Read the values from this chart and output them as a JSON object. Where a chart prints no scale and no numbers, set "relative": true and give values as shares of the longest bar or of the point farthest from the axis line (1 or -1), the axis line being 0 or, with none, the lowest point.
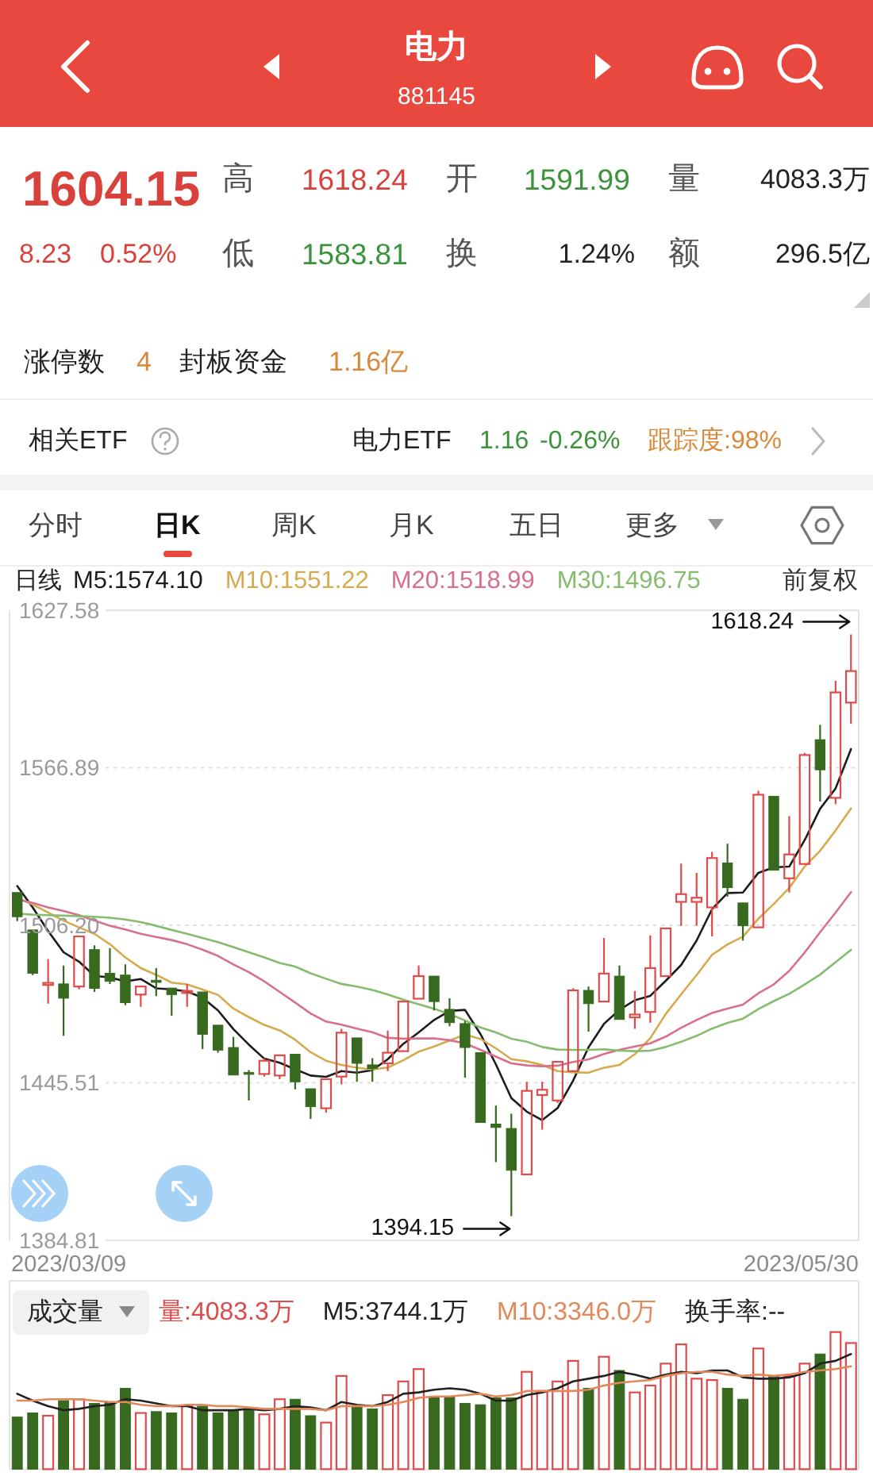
{
  "chart_data": [
    {
      "type": "other",
      "title": "电力",
      "subtitle": "881145",
      "annotations": [
        "1604.15",
        "高",
        "1618.24",
        "开",
        "1591.99",
        "量",
        "4083.3万",
        "8.23",
        "0.52%",
        "低",
        "1583.81",
        "换",
        "1.24%",
        "额",
        "296.5亿",
        "涨停数",
        "4",
        "封板资金",
        "1.16亿",
        "相关ETF",
        "电力ETF",
        "1.16",
        "-0.26%",
        "跟踪度:98%",
        "分时",
        "日K",
        "周K",
        "月K",
        "五日",
        "更多"
      ]
    },
    {
      "type": "candlestick",
      "title": "日线",
      "categories": [
        null,
        null,
        null,
        null,
        null,
        null,
        null,
        null,
        null,
        null,
        null,
        null,
        null,
        null,
        null,
        null,
        null,
        null,
        null,
        null,
        null,
        null,
        null,
        null,
        null,
        null,
        null,
        null,
        null,
        null,
        null,
        null,
        null,
        null,
        null,
        null,
        null,
        null,
        null,
        null,
        null,
        null,
        null,
        null,
        null,
        null,
        null,
        null,
        null,
        null,
        null,
        null,
        null,
        null,
        null
      ],
      "ohlc": [
        [
          1518.8,
          1519.2,
          1507.8,
          1509.5
        ],
        [
          1504.4,
          1505.0,
          1487.0,
          1487.7
        ],
        [
          1483.2,
          1493.2,
          1476.0,
          1484.0
        ],
        [
          1483.6,
          1490.7,
          1463.6,
          1478.1
        ],
        [
          1482.6,
          1502.3,
          1481.5,
          1501.9
        ],
        [
          1496.8,
          1498.5,
          1480.5,
          1481.9
        ],
        [
          1487.7,
          1497.4,
          1483.6,
          1484.6
        ],
        [
          1487.0,
          1491.1,
          1475.4,
          1476.4
        ],
        [
          1479.5,
          1483.0,
          1474.8,
          1482.6
        ],
        [
          1485.0,
          1489.7,
          1478.9,
          1484.2
        ],
        [
          1482.0,
          1482.6,
          1471.3,
          1479.5
        ],
        [
          1480.1,
          1483.6,
          1474.8,
          1480.9
        ],
        [
          1480.5,
          1480.9,
          1458.5,
          1464.2
        ],
        [
          1467.7,
          1468.3,
          1457.1,
          1458.1
        ],
        [
          1459.1,
          1463.2,
          1447.9,
          1448.5
        ],
        [
          1449.5,
          1450.4,
          1438.7,
          1449.1
        ],
        [
          1448.9,
          1455.0,
          1447.9,
          1454.0
        ],
        [
          1448.3,
          1456.5,
          1446.9,
          1456.1
        ],
        [
          1456.5,
          1457.1,
          1443.0,
          1445.9
        ],
        [
          1443.2,
          1443.8,
          1431.6,
          1436.3
        ],
        [
          1435.7,
          1447.3,
          1434.0,
          1446.9
        ],
        [
          1447.9,
          1466.3,
          1444.9,
          1464.8
        ],
        [
          1462.8,
          1463.2,
          1445.9,
          1453.0
        ],
        [
          1452.4,
          1455.0,
          1445.9,
          1451.0
        ],
        [
          1453.0,
          1465.6,
          1450.0,
          1457.1
        ],
        [
          1457.7,
          1477.2,
          1457.1,
          1476.8
        ],
        [
          1477.9,
          1490.7,
          1477.5,
          1486.6
        ],
        [
          1486.6,
          1487.0,
          1473.4,
          1476.8
        ],
        [
          1473.8,
          1478.1,
          1467.3,
          1468.7
        ],
        [
          1468.3,
          1469.3,
          1447.5,
          1459.1
        ],
        [
          1457.1,
          1457.7,
          1430.0,
          1430.2
        ],
        [
          1429.6,
          1436.7,
          1414.9,
          1428.3
        ],
        [
          1427.9,
          1433.6,
          1394.15,
          1411.8
        ],
        [
          1410.2,
          1445.9,
          1409.8,
          1442.4
        ],
        [
          1440.8,
          1445.9,
          1427.5,
          1442.8
        ],
        [
          1438.7,
          1454.0,
          1437.7,
          1453.6
        ],
        [
          1450.0,
          1481.9,
          1449.5,
          1481.1
        ],
        [
          1481.1,
          1482.6,
          1465.2,
          1476.0
        ],
        [
          1476.8,
          1501.3,
          1476.4,
          1487.6
        ],
        [
          1486.6,
          1490.7,
          1469.3,
          1469.9
        ],
        [
          1470.7,
          1480.9,
          1466.3,
          1471.8
        ],
        [
          1472.8,
          1502.3,
          1468.7,
          1489.7
        ],
        [
          1486.6,
          1505.4,
          1486.2,
          1505.0
        ],
        [
          1515.2,
          1530.0,
          1506.0,
          1518.2
        ],
        [
          1515.2,
          1526.4,
          1506.0,
          1516.8
        ],
        [
          1513.1,
          1534.5,
          1501.9,
          1532.1
        ],
        [
          1530.2,
          1537.6,
          1517.2,
          1520.7
        ],
        [
          1514.8,
          1515.2,
          1500.3,
          1506.0
        ],
        [
          1505.4,
          1558.0,
          1505.0,
          1556.5
        ],
        [
          1555.9,
          1556.4,
          1527.0,
          1527.4
        ],
        [
          1524.3,
          1548.2,
          1518.8,
          1533.5
        ],
        [
          1529.8,
          1572.6,
          1529.4,
          1571.8
        ],
        [
          1577.7,
          1583.4,
          1553.9,
          1566.1
        ],
        [
          1555.3,
          1600.4,
          1552.9,
          1595.92
        ],
        [
          1591.99,
          1618.24,
          1583.81,
          1604.15
        ]
      ],
      "colors": [
        "#37691f",
        "#37691f",
        "#dd4b4b",
        "#37691f",
        "#dd4b4b",
        "#37691f",
        "#37691f",
        "#37691f",
        "#dd4b4b",
        "#37691f",
        "#37691f",
        "#dd4b4b",
        "#37691f",
        "#37691f",
        "#37691f",
        "#37691f",
        "#dd4b4b",
        "#dd4b4b",
        "#37691f",
        "#37691f",
        "#dd4b4b",
        "#dd4b4b",
        "#37691f",
        "#37691f",
        "#dd4b4b",
        "#dd4b4b",
        "#dd4b4b",
        "#37691f",
        "#37691f",
        "#37691f",
        "#37691f",
        "#37691f",
        "#37691f",
        "#dd4b4b",
        "#dd4b4b",
        "#dd4b4b",
        "#dd4b4b",
        "#37691f",
        "#dd4b4b",
        "#37691f",
        "#dd4b4b",
        "#dd4b4b",
        "#dd4b4b",
        "#dd4b4b",
        "#dd4b4b",
        "#dd4b4b",
        "#37691f",
        "#37691f",
        "#dd4b4b",
        "#37691f",
        "#dd4b4b",
        "#dd4b4b",
        "#37691f",
        "#dd4b4b",
        "#dd4b4b"
      ],
      "series": [
        {
          "name": "M5:1574.10",
          "type": "line",
          "color": "#1c1c1c",
          "values": [
            1521.3,
            1513.1,
            1504.0,
            1495.8,
            1492.2,
            1486.7,
            1486.1,
            1484.6,
            1485.5,
            1481.9,
            1481.5,
            1480.7,
            1478.3,
            1473.4,
            1466.2,
            1460.2,
            1454.8,
            1453.2,
            1450.7,
            1448.3,
            1447.8,
            1450.0,
            1449.4,
            1450.4,
            1454.6,
            1460.5,
            1464.9,
            1469.7,
            1473.2,
            1473.6,
            1464.3,
            1452.6,
            1439.6,
            1434.4,
            1431.1,
            1435.8,
            1446.3,
            1459.2,
            1468.2,
            1473.6,
            1477.3,
            1479.0,
            1484.8,
            1490.9,
            1500.3,
            1512.4,
            1518.6,
            1518.8,
            1526.4,
            1528.5,
            1528.8,
            1539.0,
            1551.1,
            1558.9,
            1574.1
          ]
        },
        {
          "name": "M10:1551.22",
          "type": "line",
          "color": "#d6ab4f",
          "values": [
            1516.8,
            1514.2,
            1511.1,
            1508.0,
            1505.4,
            1502.9,
            1498.9,
            1493.8,
            1489.7,
            1487.1,
            1484.1,
            1483.4,
            1481.4,
            1479.4,
            1474.1,
            1470.8,
            1467.8,
            1465.7,
            1462.1,
            1457.3,
            1454.0,
            1452.4,
            1451.3,
            1450.6,
            1451.4,
            1454.2,
            1457.5,
            1459.5,
            1461.8,
            1464.1,
            1462.4,
            1458.8,
            1454.6,
            1453.8,
            1452.4,
            1450.0,
            1449.5,
            1449.4,
            1451.3,
            1452.4,
            1456.5,
            1462.7,
            1472.0,
            1479.6,
            1487.0,
            1494.8,
            1498.8,
            1501.8,
            1508.7,
            1514.4,
            1520.6,
            1528.8,
            1534.9,
            1542.7,
            1551.22
          ]
        },
        {
          "name": "M20:1518.99",
          "type": "line",
          "color": "#d8708c",
          "values": [
            1516.2,
            1514.8,
            1513.1,
            1511.7,
            1510.1,
            1508.0,
            1506.0,
            1504.6,
            1502.9,
            1501.7,
            1500.5,
            1498.9,
            1496.8,
            1494.4,
            1491.1,
            1488.1,
            1484.6,
            1480.5,
            1476.4,
            1472.2,
            1469.1,
            1467.9,
            1466.4,
            1465.0,
            1462.8,
            1462.5,
            1462.6,
            1462.6,
            1461.9,
            1460.7,
            1458.2,
            1455.6,
            1453.0,
            1452.2,
            1451.9,
            1452.1,
            1453.5,
            1454.5,
            1456.6,
            1458.2,
            1459.5,
            1460.7,
            1463.3,
            1466.7,
            1469.7,
            1472.4,
            1474.1,
            1475.6,
            1480.0,
            1483.4,
            1488.6,
            1495.7,
            1503.5,
            1511.1,
            1518.99
          ]
        },
        {
          "name": "M30:1496.75",
          "type": "line",
          "color": "#85bd6f",
          "values": [
            1510.7,
            1510.3,
            1510.1,
            1509.9,
            1509.7,
            1509.5,
            1509.1,
            1508.4,
            1507.4,
            1506.0,
            1504.4,
            1502.9,
            1501.3,
            1499.7,
            1497.8,
            1495.8,
            1493.8,
            1491.7,
            1490.3,
            1487.7,
            1485.6,
            1483.6,
            1482.6,
            1481.3,
            1479.5,
            1477.5,
            1475.8,
            1474.0,
            1472.0,
            1469.5,
            1466.8,
            1464.9,
            1462.5,
            1461.3,
            1459.3,
            1458.3,
            1458.2,
            1458.2,
            1458.4,
            1457.9,
            1457.7,
            1457.9,
            1459.3,
            1461.3,
            1463.6,
            1466.4,
            1468.6,
            1470.2,
            1473.9,
            1477.0,
            1479.8,
            1483.4,
            1487.2,
            1492.0,
            1496.75
          ]
        }
      ],
      "ylim": [
        1384.81,
        1627.58
      ],
      "yticks": [
        1384.81,
        1445.51,
        {
          "value": 1506.2,
          "label": "1506.20"
        },
        1566.89,
        1627.58
      ],
      "grid": "y",
      "legend": "top",
      "annotations": [
        "1618.24",
        "1394.15",
        "前复权",
        "2023/03/09",
        "2023/05/30"
      ]
    },
    {
      "type": "bar",
      "title": "成交量",
      "categories": [
        null,
        null,
        null,
        null,
        null,
        null,
        null,
        null,
        null,
        null,
        null,
        null,
        null,
        null,
        null,
        null,
        null,
        null,
        null,
        null,
        null,
        null,
        null,
        null,
        null,
        null,
        null,
        null,
        null,
        null,
        null,
        null,
        null,
        null,
        null,
        null,
        null,
        null,
        null,
        null,
        null,
        null,
        null,
        null,
        null,
        null,
        null,
        null,
        null,
        null,
        null,
        null,
        null,
        null,
        null
      ],
      "relative": true,
      "series": [
        {
          "name": "量:4083.3万",
          "color": "#dd4b4b",
          "colors": [
            "#37691f",
            "#37691f",
            "#dd4b4b",
            "#37691f",
            "#dd4b4b",
            "#37691f",
            "#37691f",
            "#37691f",
            "#dd4b4b",
            "#37691f",
            "#37691f",
            "#dd4b4b",
            "#37691f",
            "#37691f",
            "#37691f",
            "#37691f",
            "#dd4b4b",
            "#dd4b4b",
            "#37691f",
            "#37691f",
            "#dd4b4b",
            "#dd4b4b",
            "#37691f",
            "#37691f",
            "#dd4b4b",
            "#dd4b4b",
            "#dd4b4b",
            "#37691f",
            "#37691f",
            "#37691f",
            "#37691f",
            "#37691f",
            "#37691f",
            "#dd4b4b",
            "#dd4b4b",
            "#dd4b4b",
            "#dd4b4b",
            "#37691f",
            "#dd4b4b",
            "#37691f",
            "#dd4b4b",
            "#dd4b4b",
            "#dd4b4b",
            "#dd4b4b",
            "#dd4b4b",
            "#dd4b4b",
            "#37691f",
            "#37691f",
            "#dd4b4b",
            "#37691f",
            "#dd4b4b",
            "#dd4b4b",
            "#37691f",
            "#dd4b4b",
            "#dd4b4b"
          ],
          "values": [
            0.38,
            0.41,
            0.39,
            0.5,
            0.51,
            0.48,
            0.49,
            0.59,
            0.41,
            0.42,
            0.41,
            0.46,
            0.46,
            0.41,
            0.43,
            0.43,
            0.4,
            0.51,
            0.51,
            0.39,
            0.34,
            0.68,
            0.46,
            0.44,
            0.54,
            0.64,
            0.73,
            0.52,
            0.53,
            0.48,
            0.47,
            0.52,
            0.52,
            0.71,
            0.57,
            0.64,
            0.79,
            0.59,
            0.82,
            0.72,
            0.56,
            0.61,
            0.77,
            0.91,
            0.66,
            0.65,
            0.59,
            0.51,
            0.88,
            0.68,
            0.68,
            0.77,
            0.84,
            1,
            0.92
          ]
        },
        {
          "name": "M5:3744.1万",
          "type": "line",
          "color": "#222222",
          "values": [
            0.55,
            0.5,
            0.46,
            0.43,
            0.44,
            0.46,
            0.47,
            0.51,
            0.5,
            0.48,
            0.46,
            0.46,
            0.43,
            0.43,
            0.43,
            0.44,
            0.43,
            0.44,
            0.46,
            0.45,
            0.43,
            0.49,
            0.47,
            0.46,
            0.49,
            0.55,
            0.56,
            0.58,
            0.59,
            0.58,
            0.55,
            0.5,
            0.5,
            0.54,
            0.56,
            0.59,
            0.64,
            0.66,
            0.68,
            0.71,
            0.69,
            0.66,
            0.69,
            0.71,
            0.7,
            0.72,
            0.72,
            0.67,
            0.66,
            0.66,
            0.67,
            0.7,
            0.77,
            0.79,
            0.84
          ]
        },
        {
          "name": "M10:3346.0万",
          "type": "line",
          "color": "#e3885a",
          "values": [
            0.5,
            0.5,
            0.51,
            0.51,
            0.51,
            0.5,
            0.49,
            0.49,
            0.47,
            0.46,
            0.46,
            0.47,
            0.47,
            0.46,
            0.46,
            0.45,
            0.44,
            0.44,
            0.44,
            0.44,
            0.43,
            0.46,
            0.46,
            0.46,
            0.47,
            0.49,
            0.52,
            0.53,
            0.53,
            0.54,
            0.55,
            0.53,
            0.54,
            0.57,
            0.57,
            0.57,
            0.57,
            0.58,
            0.61,
            0.63,
            0.64,
            0.65,
            0.68,
            0.7,
            0.71,
            0.71,
            0.69,
            0.68,
            0.69,
            0.68,
            0.69,
            0.71,
            0.72,
            0.73,
            0.75
          ]
        }
      ],
      "legend": "top",
      "annotations": [
        "换手率:--"
      ]
    }
  ]
}
